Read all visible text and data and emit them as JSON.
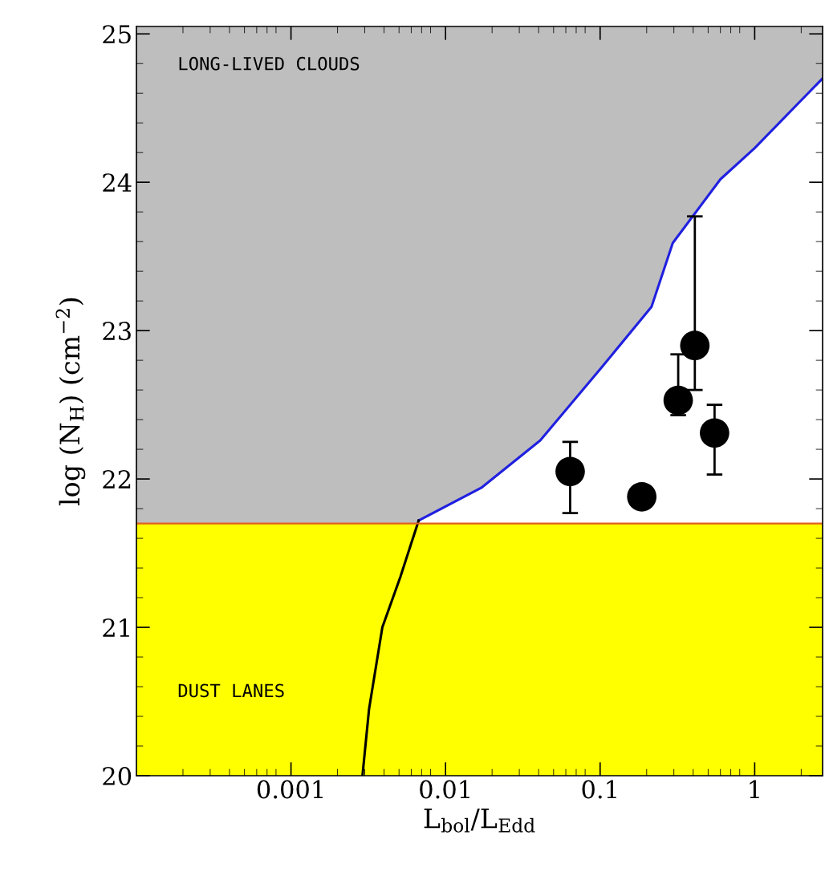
{
  "chart_data": {
    "type": "scatter",
    "xlabel": "L$_{bol}$/L$_{Edd}$",
    "ylabel": "log (N$_{H}$) (cm$^{−2}$)",
    "log": "x",
    "xlim": [
      0.0001,
      2.75
    ],
    "ylim": [
      20,
      25.05
    ],
    "xticks": [
      0.001,
      0.01,
      0.1,
      1
    ],
    "yticks": [
      20,
      21,
      22,
      23,
      24,
      25
    ],
    "grid": false,
    "legend": false,
    "annotations": [
      "LONG-LIVED CLOUDS",
      "DUST LANES"
    ],
    "bands": [
      {
        "axis": "y",
        "from": 21.7,
        "to": 25.05,
        "color": "#bebebe"
      },
      {
        "axis": "y",
        "from": 20,
        "to": 21.7,
        "color": "#ffff00"
      }
    ],
    "ref_lines": [
      {
        "axis": "y",
        "value": 21.7,
        "color": "#e06020"
      }
    ],
    "series": [
      {
        "type": "area",
        "color": "#2020e0",
        "x": [
          0.0067,
          0.017,
          0.041,
          0.1,
          0.215,
          0.295,
          0.6,
          1.0,
          2.75
        ],
        "values": [
          21.72,
          21.94,
          22.26,
          22.74,
          23.16,
          23.59,
          24.02,
          24.23,
          24.7
        ]
      },
      {
        "type": "line",
        "color": "#000000",
        "x": [
          0.0029,
          0.0032,
          0.0039,
          0.0051,
          0.0067
        ],
        "values": [
          20.0,
          20.45,
          21.0,
          21.34,
          21.72
        ]
      },
      {
        "color": "#000000",
        "marker": "circle",
        "x": [
          0.064,
          0.186,
          0.32,
          0.41,
          0.55
        ],
        "values": [
          22.05,
          21.88,
          22.53,
          22.9,
          22.31
        ],
        "errors": [
          [
            21.77,
            22.25
          ],
          null,
          [
            22.43,
            22.84
          ],
          [
            22.6,
            23.77
          ],
          [
            22.03,
            22.5
          ]
        ]
      }
    ]
  }
}
